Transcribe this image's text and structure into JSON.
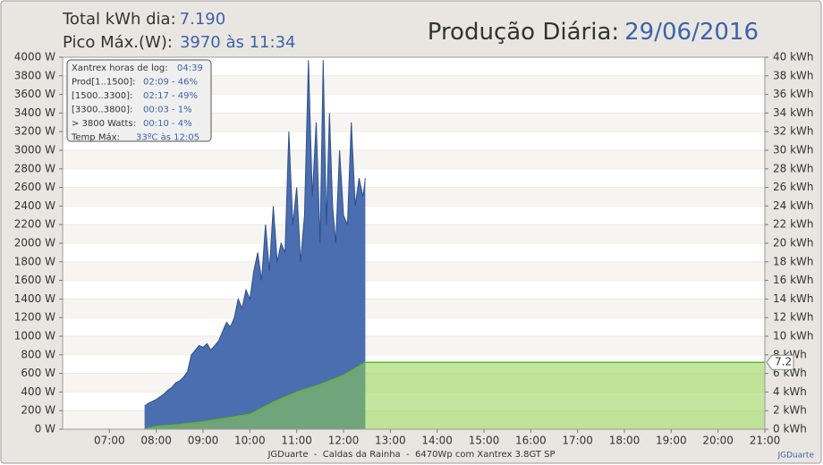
{
  "chart_data": {
    "type": "area",
    "stats": [
      {
        "label": "Total kWh dia:",
        "value": "7.190"
      },
      {
        "label": "Pico Máx.(W):",
        "value": "3970 às 11:34"
      }
    ],
    "title": "Produção Diária:",
    "date": "29/06/2016",
    "info_box": [
      {
        "label": "Xantrex horas de log:",
        "value": "04:39"
      },
      {
        "label": "Prod[1..1500]:",
        "value": "02:09 - 46%"
      },
      {
        "label": "[1500..3300]:",
        "value": "02:17 - 49%"
      },
      {
        "label": "[3300..3800]:",
        "value": "00:03 - 1%"
      },
      {
        "label": "> 3800 Watts:",
        "value": "00:10 - 4%"
      },
      {
        "label": "Temp Máx:",
        "value": "33ºC às 12:05"
      }
    ],
    "footer": "JGDuarte  -  Caldas da Rainha  -  6470Wp com Xantrex 3.8GT SP",
    "credit": "JGDuarte",
    "xlim": [
      "06:00",
      "21:00"
    ],
    "xticks": [
      "07:00",
      "08:00",
      "09:00",
      "10:00",
      "11:00",
      "12:00",
      "13:00",
      "14:00",
      "15:00",
      "16:00",
      "17:00",
      "18:00",
      "19:00",
      "20:00",
      "21:00"
    ],
    "ylim": [
      0,
      4000
    ],
    "yticks": [
      {
        "value": 0,
        "label": "0 W"
      },
      {
        "value": 200,
        "label": "200 W"
      },
      {
        "value": 400,
        "label": "400 W"
      },
      {
        "value": 600,
        "label": "600 W"
      },
      {
        "value": 800,
        "label": "800 W"
      },
      {
        "value": 1000,
        "label": "1000 W"
      },
      {
        "value": 1200,
        "label": "1200 W"
      },
      {
        "value": 1400,
        "label": "1400 W"
      },
      {
        "value": 1600,
        "label": "1600 W"
      },
      {
        "value": 1800,
        "label": "1800 W"
      },
      {
        "value": 2000,
        "label": "2000 W"
      },
      {
        "value": 2200,
        "label": "2200 W"
      },
      {
        "value": 2400,
        "label": "2400 W"
      },
      {
        "value": 2600,
        "label": "2600 W"
      },
      {
        "value": 2800,
        "label": "2800 W"
      },
      {
        "value": 3000,
        "label": "3000 W"
      },
      {
        "value": 3200,
        "label": "3200 W"
      },
      {
        "value": 3400,
        "label": "3400 W"
      },
      {
        "value": 3600,
        "label": "3600 W"
      },
      {
        "value": 3800,
        "label": "3800 W"
      },
      {
        "value": 4000,
        "label": "4000 W"
      }
    ],
    "y2lim": [
      0,
      40
    ],
    "y2ticks": [
      {
        "value": 0,
        "label": "0 kWh"
      },
      {
        "value": 2,
        "label": "2 kWh"
      },
      {
        "value": 4,
        "label": "4 kWh"
      },
      {
        "value": 6,
        "label": "6 kWh"
      },
      {
        "value": 8,
        "label": "8 kWh"
      },
      {
        "value": 10,
        "label": "10 kWh"
      },
      {
        "value": 12,
        "label": "12 kWh"
      },
      {
        "value": 14,
        "label": "14 kWh"
      },
      {
        "value": 16,
        "label": "16 kWh"
      },
      {
        "value": 18,
        "label": "18 kWh"
      },
      {
        "value": 20,
        "label": "20 kWh"
      },
      {
        "value": 22,
        "label": "22 kWh"
      },
      {
        "value": 24,
        "label": "24 kWh"
      },
      {
        "value": 26,
        "label": "26 kWh"
      },
      {
        "value": 28,
        "label": "28 kWh"
      },
      {
        "value": 30,
        "label": "30 kWh"
      },
      {
        "value": 32,
        "label": "32 kWh"
      },
      {
        "value": 34,
        "label": "34 kWh"
      },
      {
        "value": 36,
        "label": "36 kWh"
      },
      {
        "value": 38,
        "label": "38 kWh"
      },
      {
        "value": 40,
        "label": "40 kWh"
      }
    ],
    "grid": true,
    "series": [
      {
        "color": "#4a6eb0",
        "x": [
          "07:45",
          "07:50",
          "07:55",
          "08:00",
          "08:05",
          "08:10",
          "08:15",
          "08:20",
          "08:25",
          "08:30",
          "08:35",
          "08:40",
          "08:45",
          "08:50",
          "08:55",
          "09:00",
          "09:05",
          "09:10",
          "09:15",
          "09:20",
          "09:25",
          "09:30",
          "09:35",
          "09:40",
          "09:45",
          "09:50",
          "09:55",
          "10:00",
          "10:05",
          "10:10",
          "10:15",
          "10:20",
          "10:25",
          "10:30",
          "10:35",
          "10:40",
          "10:45",
          "10:50",
          "10:55",
          "11:00",
          "11:05",
          "11:10",
          "11:15",
          "11:20",
          "11:25",
          "11:30",
          "11:34",
          "11:38",
          "11:42",
          "11:46",
          "11:50",
          "11:55",
          "12:00",
          "12:05",
          "12:10",
          "12:15",
          "12:20",
          "12:25",
          "12:28"
        ],
        "values": [
          250,
          280,
          300,
          320,
          350,
          380,
          420,
          450,
          500,
          520,
          560,
          620,
          800,
          850,
          900,
          880,
          920,
          850,
          900,
          950,
          1050,
          1150,
          1100,
          1200,
          1400,
          1300,
          1500,
          1400,
          1700,
          1900,
          1600,
          2200,
          1700,
          2400,
          1800,
          2000,
          1900,
          3200,
          2200,
          2600,
          1800,
          2300,
          3970,
          2500,
          3300,
          2000,
          3970,
          2200,
          3400,
          2400,
          2000,
          3000,
          2300,
          2200,
          3300,
          2400,
          2700,
          2500,
          2700
        ]
      },
      {
        "color": "#8fd14f",
        "axis": "y2",
        "x": [
          "07:45",
          "08:00",
          "08:30",
          "09:00",
          "09:30",
          "10:00",
          "10:30",
          "11:00",
          "11:30",
          "12:00",
          "12:28",
          "21:00"
        ],
        "values": [
          0,
          0.3,
          0.5,
          0.8,
          1.2,
          1.6,
          2.9,
          4.0,
          4.8,
          5.8,
          7.19,
          7.19
        ],
        "value_labels": [
          null,
          null,
          null,
          null,
          null,
          null,
          null,
          null,
          null,
          null,
          null,
          "7.2"
        ]
      }
    ]
  }
}
